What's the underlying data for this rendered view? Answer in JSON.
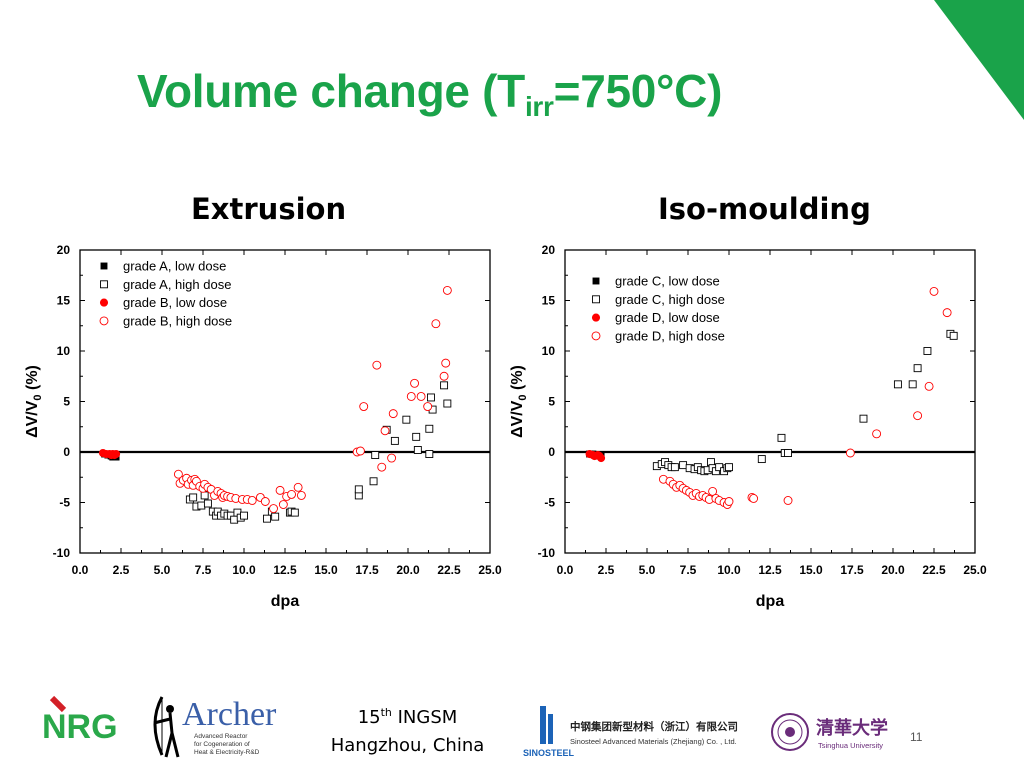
{
  "title": {
    "main": "Volume change (T",
    "sub": "irr",
    "rest": "=750°C)"
  },
  "colors": {
    "title": "#1aa34a",
    "accent": "#1aa34a",
    "markers_black": "#000000",
    "markers_red": "#ff0000"
  },
  "footer": {
    "line1_num": "15",
    "line1_sup": "th",
    "line1_rest": " INGSM",
    "line2": "Hangzhou, China"
  },
  "page_number": "11",
  "logos": {
    "nrg": "NRG",
    "archer": {
      "name": "Archer",
      "caption": [
        "Advanced Reactor",
        "for Cogeneration of",
        "Heat & Electricity-R&D"
      ]
    },
    "sinosteel": {
      "name": "SINOSTEEL",
      "cn": "中钢集团新型材料（浙江）有限公司",
      "en": "Sinosteel Advanced Materials (Zhejiang) Co. , Ltd."
    },
    "tsinghua": {
      "cn": "清華大学",
      "en": "Tsinghua University"
    }
  },
  "chart_data": [
    {
      "type": "scatter",
      "title": "Extrusion",
      "xlabel": "dpa",
      "ylabel": "ΔV/V0 (%)",
      "xlim": [
        0,
        25
      ],
      "ylim": [
        -10,
        20
      ],
      "xticks": [
        "0.0",
        "2.5",
        "5.0",
        "7.5",
        "10.0",
        "12.5",
        "15.0",
        "17.5",
        "20.0",
        "22.5",
        "25.0"
      ],
      "yticks": [
        "-10",
        "-5",
        "0",
        "5",
        "10",
        "15",
        "20"
      ],
      "legend_position": "top-left",
      "series": [
        {
          "name": "grade A, low dose",
          "marker": "square",
          "filled": true,
          "color": "#000000",
          "points": [
            [
              1.5,
              -0.2
            ],
            [
              1.7,
              -0.3
            ],
            [
              1.8,
              -0.3
            ],
            [
              1.9,
              -0.4
            ],
            [
              2.0,
              -0.5
            ],
            [
              2.1,
              -0.4
            ],
            [
              2.2,
              -0.5
            ]
          ]
        },
        {
          "name": "grade A, high dose",
          "marker": "square",
          "filled": false,
          "color": "#000000",
          "points": [
            [
              6.7,
              -4.7
            ],
            [
              6.9,
              -4.5
            ],
            [
              7.1,
              -5.4
            ],
            [
              7.4,
              -5.3
            ],
            [
              7.6,
              -4.3
            ],
            [
              7.8,
              -5.1
            ],
            [
              8.1,
              -5.9
            ],
            [
              8.3,
              -6.3
            ],
            [
              8.4,
              -5.9
            ],
            [
              8.6,
              -6.3
            ],
            [
              8.8,
              -6.1
            ],
            [
              9.0,
              -6.3
            ],
            [
              9.2,
              -6.3
            ],
            [
              9.4,
              -6.7
            ],
            [
              9.6,
              -6.0
            ],
            [
              9.8,
              -6.5
            ],
            [
              10.0,
              -6.3
            ],
            [
              11.4,
              -6.6
            ],
            [
              11.7,
              -5.9
            ],
            [
              11.9,
              -6.4
            ],
            [
              12.8,
              -6.0
            ],
            [
              12.9,
              -5.9
            ],
            [
              13.1,
              -6.0
            ],
            [
              17.0,
              -4.3
            ],
            [
              17.0,
              -3.7
            ],
            [
              17.9,
              -2.9
            ],
            [
              18.0,
              -0.3
            ],
            [
              18.7,
              2.2
            ],
            [
              19.2,
              1.1
            ],
            [
              19.9,
              3.2
            ],
            [
              20.5,
              1.5
            ],
            [
              20.6,
              0.2
            ],
            [
              21.3,
              -0.2
            ],
            [
              21.3,
              2.3
            ],
            [
              21.5,
              4.2
            ],
            [
              21.4,
              5.4
            ],
            [
              22.2,
              6.6
            ],
            [
              22.4,
              4.8
            ]
          ]
        },
        {
          "name": "grade B, low dose",
          "marker": "circle",
          "filled": true,
          "color": "#ff0000",
          "points": [
            [
              1.4,
              -0.1
            ],
            [
              1.6,
              -0.2
            ],
            [
              1.8,
              -0.2
            ],
            [
              1.9,
              -0.3
            ],
            [
              2.0,
              -0.2
            ],
            [
              2.1,
              -0.3
            ],
            [
              2.2,
              -0.2
            ]
          ]
        },
        {
          "name": "grade B, high dose",
          "marker": "circle",
          "filled": false,
          "color": "#ff0000",
          "points": [
            [
              6.0,
              -2.2
            ],
            [
              6.1,
              -3.1
            ],
            [
              6.3,
              -2.8
            ],
            [
              6.5,
              -2.6
            ],
            [
              6.6,
              -3.2
            ],
            [
              6.8,
              -2.8
            ],
            [
              6.9,
              -3.3
            ],
            [
              7.0,
              -2.7
            ],
            [
              7.1,
              -2.9
            ],
            [
              7.3,
              -3.4
            ],
            [
              7.5,
              -3.6
            ],
            [
              7.6,
              -3.2
            ],
            [
              7.8,
              -3.5
            ],
            [
              8.0,
              -3.7
            ],
            [
              8.2,
              -4.3
            ],
            [
              8.4,
              -3.9
            ],
            [
              8.6,
              -4.1
            ],
            [
              8.7,
              -4.5
            ],
            [
              8.8,
              -4.3
            ],
            [
              9.0,
              -4.4
            ],
            [
              9.2,
              -4.5
            ],
            [
              9.5,
              -4.6
            ],
            [
              9.9,
              -4.7
            ],
            [
              10.2,
              -4.7
            ],
            [
              10.5,
              -4.8
            ],
            [
              11.0,
              -4.5
            ],
            [
              11.3,
              -4.9
            ],
            [
              11.8,
              -5.6
            ],
            [
              12.2,
              -3.8
            ],
            [
              12.4,
              -5.2
            ],
            [
              12.6,
              -4.4
            ],
            [
              12.9,
              -4.2
            ],
            [
              13.3,
              -3.5
            ],
            [
              13.5,
              -4.3
            ],
            [
              16.9,
              0.0
            ],
            [
              17.1,
              0.1
            ],
            [
              17.3,
              4.5
            ],
            [
              18.1,
              8.6
            ],
            [
              18.4,
              -1.5
            ],
            [
              18.6,
              2.1
            ],
            [
              19.0,
              -0.6
            ],
            [
              19.1,
              3.8
            ],
            [
              20.2,
              5.5
            ],
            [
              20.4,
              6.8
            ],
            [
              20.8,
              5.5
            ],
            [
              21.2,
              4.5
            ],
            [
              21.7,
              12.7
            ],
            [
              22.2,
              7.5
            ],
            [
              22.3,
              8.8
            ],
            [
              22.4,
              16.0
            ]
          ]
        }
      ]
    },
    {
      "type": "scatter",
      "title": "Iso-moulding",
      "xlabel": "dpa",
      "ylabel": "ΔV/V0 (%)",
      "xlim": [
        0,
        25
      ],
      "ylim": [
        -10,
        20
      ],
      "xticks": [
        "0.0",
        "2.5",
        "5.0",
        "7.5",
        "10.0",
        "12.5",
        "15.0",
        "17.5",
        "20.0",
        "22.5",
        "25.0"
      ],
      "yticks": [
        "-10",
        "-5",
        "0",
        "5",
        "10",
        "15",
        "20"
      ],
      "legend_position": "top-center",
      "series": [
        {
          "name": "grade C, low dose",
          "marker": "square",
          "filled": true,
          "color": "#000000",
          "points": [
            [
              1.5,
              -0.2
            ],
            [
              1.7,
              -0.2
            ],
            [
              1.8,
              -0.3
            ],
            [
              1.9,
              -0.3
            ],
            [
              2.0,
              -0.4
            ],
            [
              2.1,
              -0.4
            ],
            [
              2.2,
              -0.3
            ]
          ]
        },
        {
          "name": "grade C, high dose",
          "marker": "square",
          "filled": false,
          "color": "#000000",
          "points": [
            [
              5.6,
              -1.4
            ],
            [
              5.9,
              -1.2
            ],
            [
              6.1,
              -1.0
            ],
            [
              6.3,
              -1.3
            ],
            [
              6.5,
              -1.5
            ],
            [
              6.7,
              -1.5
            ],
            [
              7.2,
              -1.3
            ],
            [
              7.6,
              -1.6
            ],
            [
              7.9,
              -1.7
            ],
            [
              8.1,
              -1.5
            ],
            [
              8.3,
              -1.8
            ],
            [
              8.5,
              -1.9
            ],
            [
              8.7,
              -1.8
            ],
            [
              8.9,
              -1.0
            ],
            [
              9.0,
              -1.6
            ],
            [
              9.2,
              -1.9
            ],
            [
              9.4,
              -1.5
            ],
            [
              9.7,
              -1.9
            ],
            [
              9.9,
              -1.6
            ],
            [
              10.0,
              -1.5
            ],
            [
              12.0,
              -0.7
            ],
            [
              13.2,
              1.4
            ],
            [
              13.4,
              -0.1
            ],
            [
              13.6,
              -0.1
            ],
            [
              18.2,
              3.3
            ],
            [
              20.3,
              6.7
            ],
            [
              21.2,
              6.7
            ],
            [
              21.5,
              8.3
            ],
            [
              22.1,
              10.0
            ],
            [
              23.5,
              11.7
            ],
            [
              23.7,
              11.5
            ]
          ]
        },
        {
          "name": "grade D, low dose",
          "marker": "circle",
          "filled": true,
          "color": "#ff0000",
          "points": [
            [
              1.5,
              -0.2
            ],
            [
              1.7,
              -0.3
            ],
            [
              1.8,
              -0.4
            ],
            [
              2.0,
              -0.3
            ],
            [
              2.1,
              -0.4
            ],
            [
              2.2,
              -0.6
            ]
          ]
        },
        {
          "name": "grade D, high dose",
          "marker": "circle",
          "filled": false,
          "color": "#ff0000",
          "points": [
            [
              6.0,
              -2.7
            ],
            [
              6.4,
              -2.9
            ],
            [
              6.6,
              -3.2
            ],
            [
              6.8,
              -3.5
            ],
            [
              7.0,
              -3.3
            ],
            [
              7.2,
              -3.6
            ],
            [
              7.4,
              -3.8
            ],
            [
              7.6,
              -4.0
            ],
            [
              7.8,
              -4.3
            ],
            [
              8.0,
              -4.1
            ],
            [
              8.2,
              -4.4
            ],
            [
              8.4,
              -4.3
            ],
            [
              8.6,
              -4.5
            ],
            [
              8.8,
              -4.7
            ],
            [
              9.0,
              -3.9
            ],
            [
              9.2,
              -4.6
            ],
            [
              9.4,
              -4.8
            ],
            [
              9.7,
              -5.0
            ],
            [
              9.9,
              -5.2
            ],
            [
              10.0,
              -4.9
            ],
            [
              11.4,
              -4.5
            ],
            [
              11.5,
              -4.6
            ],
            [
              13.6,
              -4.8
            ],
            [
              17.4,
              -0.1
            ],
            [
              19.0,
              1.8
            ],
            [
              21.5,
              3.6
            ],
            [
              22.2,
              6.5
            ],
            [
              22.5,
              15.9
            ],
            [
              23.3,
              13.8
            ]
          ]
        }
      ]
    }
  ]
}
